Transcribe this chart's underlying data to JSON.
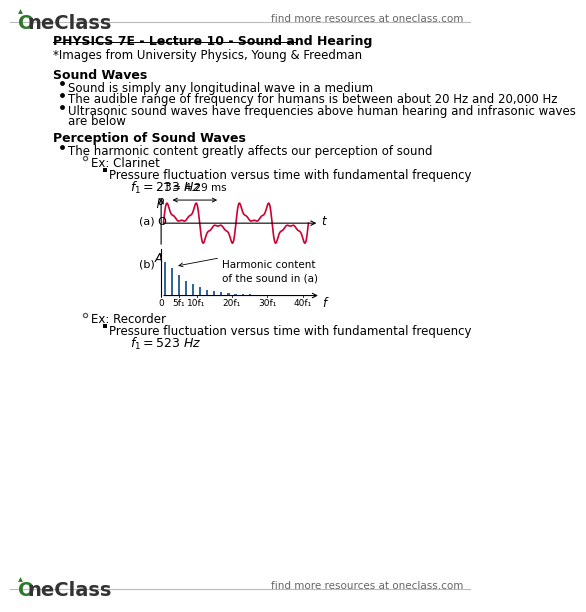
{
  "bg_color": "#ffffff",
  "header_right_text": "find more resources at oneclass.com",
  "footer_right_text": "find more resources at oneclass.com",
  "title": "PHYSICS 7E - Lecture 10 - Sound and Hearing",
  "subtitle": "*Images from University Physics, Young & Freedman",
  "section1": "Sound Waves",
  "bullets1": [
    "Sound is simply any longitudinal wave in a medium",
    "The audible range of frequency for humans is between about 20 Hz and 20,000 Hz",
    "Ultrasonic sound waves have frequencies above human hearing and infrasonic waves\nare below"
  ],
  "section2": "Perception of Sound Waves",
  "bullets2": [
    "The harmonic content greatly affects our perception of sound"
  ],
  "sub_bullet1": "Ex: Clarinet",
  "sub_sub_bullet1": "Pressure fluctuation versus time with fundamental frequency",
  "clarinet_freq": "f₁ = 233 Hz",
  "period_label": "T = 4.29 ms",
  "label_a": "(a) O",
  "label_b": "(b)",
  "label_p": "p",
  "label_A": "A",
  "label_t": "t",
  "label_f": "f",
  "harmonic_label": "Harmonic content\nof the sound in (a)",
  "harmonic_x_labels": [
    "0",
    "5f₁",
    "10f₁",
    "20f₁",
    "30f₁",
    "40f₁"
  ],
  "sub_bullet2": "Ex: Recorder",
  "sub_sub_bullet2": "Pressure fluctuation versus time with fundamental frequency",
  "recorder_freq": "f₁ = 523 Hz",
  "wave_color": "#cc0033",
  "bar_color": "#336699",
  "text_color": "#000000",
  "logo_green": "#2d7a2d"
}
